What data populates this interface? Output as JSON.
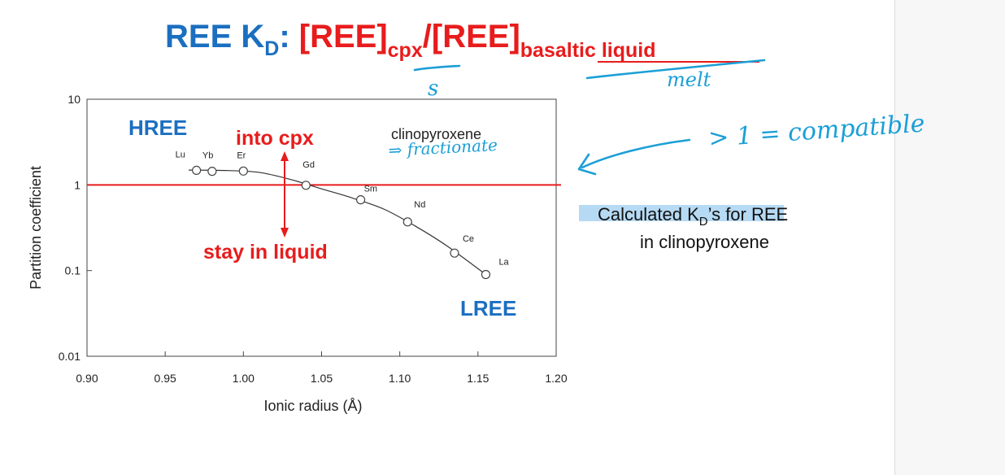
{
  "title": {
    "prefix": "REE K",
    "prefix_sub": "D",
    "colon": ":",
    "num_open": "[REE]",
    "num_sub": "cpx",
    "slash": "/",
    "den_open": "[REE]",
    "den_sub": "basaltic liquid"
  },
  "chart_data": {
    "type": "scatter",
    "xlabel": "Ionic radius (Å)",
    "ylabel": "Partition coefficient",
    "xlim": [
      0.9,
      1.2
    ],
    "ylim": [
      0.01,
      10
    ],
    "y_scale": "log",
    "x_ticks": [
      "0.90",
      "0.95",
      "1.00",
      "1.05",
      "1.10",
      "1.15",
      "1.20"
    ],
    "y_ticks": [
      {
        "label": "10",
        "value": 10
      },
      {
        "label": "1",
        "value": 1
      },
      {
        "label": "0.1",
        "value": 0.1
      },
      {
        "label": "0.01",
        "value": 0.01
      }
    ],
    "points": [
      {
        "label": "Lu",
        "x": 0.97,
        "y": 1.48
      },
      {
        "label": "Yb",
        "x": 0.98,
        "y": 1.44
      },
      {
        "label": "Er",
        "x": 1.0,
        "y": 1.45
      },
      {
        "label": "Gd",
        "x": 1.04,
        "y": 0.99
      },
      {
        "label": "Sm",
        "x": 1.075,
        "y": 0.67
      },
      {
        "label": "Nd",
        "x": 1.105,
        "y": 0.37
      },
      {
        "label": "Ce",
        "x": 1.135,
        "y": 0.16
      },
      {
        "label": "La",
        "x": 1.155,
        "y": 0.09
      }
    ],
    "curve": [
      [
        0.965,
        1.49
      ],
      [
        0.99,
        1.47
      ],
      [
        1.01,
        1.4
      ],
      [
        1.03,
        1.16
      ],
      [
        1.05,
        0.9
      ],
      [
        1.07,
        0.7
      ],
      [
        1.09,
        0.52
      ],
      [
        1.11,
        0.33
      ],
      [
        1.13,
        0.195
      ],
      [
        1.155,
        0.09
      ]
    ],
    "reference_line": {
      "y": 1,
      "color": "#e81c1c"
    },
    "mineral_label": "clinopyroxene",
    "annotations": {
      "hree": "HREE",
      "lree": "LREE",
      "into_cpx": "into cpx",
      "stay_liquid": "stay in liquid"
    },
    "arrow_color": "#e81c1c"
  },
  "side_note": {
    "line1_pre": "Calculated K",
    "line1_sub": "D",
    "line1_post": "’s for REE",
    "line2": "in clinopyroxene"
  },
  "handwriting": {
    "under_cpx": "s",
    "under_liquid": "melt",
    "fractionate": "⇒ fractionate",
    "compatible": "> 1  = compatible"
  },
  "colors": {
    "title_blue": "#1b6fc0",
    "title_red": "#e81c1c",
    "ink": "#1b9fd6",
    "highlight": "#a9d4f2"
  }
}
